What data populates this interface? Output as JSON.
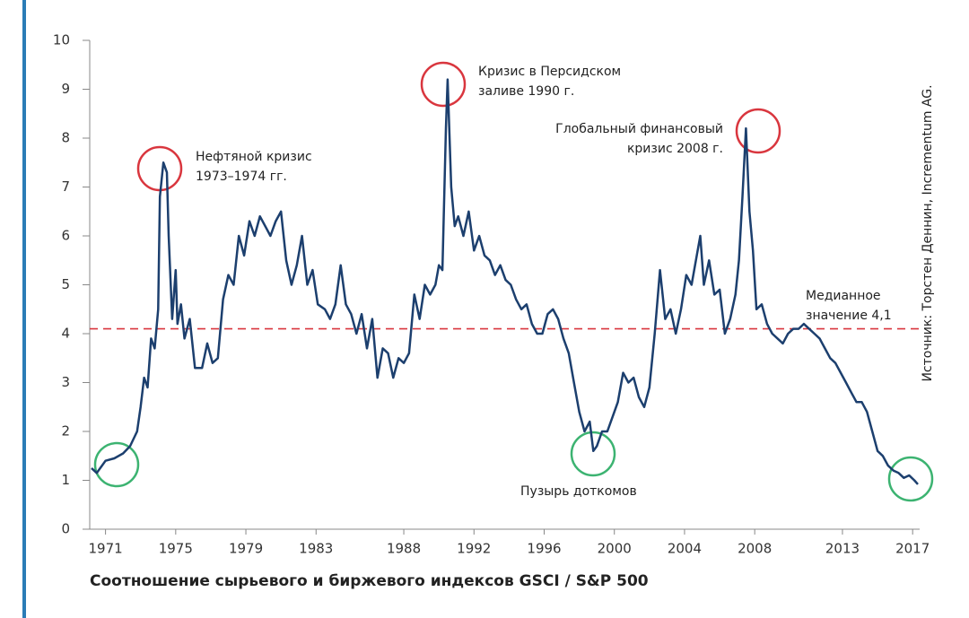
{
  "chart_data": {
    "type": "line",
    "xlabel": "Соотношение сырьевого и биржевого индексов GSCI / S&P 500",
    "source": "Источник: Торстен Деннин, Incrementum AG.",
    "color": "#1c3f6e",
    "median": 4.1,
    "median_color": "#d9363e",
    "median_label": [
      "Медианное",
      "значение 4,1"
    ],
    "annotations": [
      {
        "lines": [
          "Нефтяной кризис",
          "1973–1974 гг."
        ]
      },
      {
        "lines": [
          "Кризис в Персидском",
          "заливе 1990 г."
        ]
      },
      {
        "lines": [
          "Глобальный финансовый",
          "кризис 2008 г."
        ]
      },
      {
        "lines": [
          "Пузырь доткомов"
        ]
      }
    ],
    "xlim": [
      1970.1,
      2017.4
    ],
    "ylim": [
      0,
      10
    ],
    "xticks": [
      1971,
      1975,
      1979,
      1983,
      1988,
      1992,
      1996,
      2000,
      2004,
      2008,
      2013,
      2017
    ],
    "yticks": [
      0,
      1,
      2,
      3,
      4,
      5,
      6,
      7,
      8,
      9,
      10
    ],
    "x": [
      1970.2,
      1970.5,
      1970.8,
      1971.0,
      1971.5,
      1972.0,
      1972.4,
      1972.8,
      1973.0,
      1973.2,
      1973.4,
      1973.6,
      1973.8,
      1974.0,
      1974.1,
      1974.3,
      1974.5,
      1974.6,
      1974.8,
      1975.0,
      1975.1,
      1975.3,
      1975.5,
      1975.8,
      1976.1,
      1976.5,
      1976.8,
      1977.1,
      1977.4,
      1977.7,
      1978.0,
      1978.3,
      1978.6,
      1978.9,
      1979.2,
      1979.5,
      1979.8,
      1980.1,
      1980.4,
      1980.7,
      1981.0,
      1981.3,
      1981.6,
      1981.9,
      1982.2,
      1982.5,
      1982.8,
      1983.1,
      1983.5,
      1983.8,
      1984.1,
      1984.4,
      1984.7,
      1985.0,
      1985.3,
      1985.6,
      1985.9,
      1986.2,
      1986.5,
      1986.8,
      1987.1,
      1987.4,
      1987.7,
      1988.0,
      1988.3,
      1988.6,
      1988.9,
      1989.2,
      1989.5,
      1989.8,
      1990.0,
      1990.2,
      1990.4,
      1990.5,
      1990.7,
      1990.9,
      1991.1,
      1991.4,
      1991.7,
      1992.0,
      1992.3,
      1992.6,
      1992.9,
      1993.2,
      1993.5,
      1993.8,
      1994.1,
      1994.4,
      1994.7,
      1995.0,
      1995.3,
      1995.6,
      1995.9,
      1996.2,
      1996.5,
      1996.8,
      1997.1,
      1997.4,
      1997.7,
      1998.0,
      1998.3,
      1998.6,
      1998.8,
      1999.0,
      1999.3,
      1999.6,
      1999.9,
      2000.2,
      2000.5,
      2000.8,
      2001.1,
      2001.4,
      2001.7,
      2002.0,
      2002.3,
      2002.6,
      2002.9,
      2003.2,
      2003.5,
      2003.8,
      2004.1,
      2004.4,
      2004.7,
      2004.9,
      2005.1,
      2005.4,
      2005.7,
      2006.0,
      2006.3,
      2006.6,
      2006.9,
      2007.1,
      2007.3,
      2007.5,
      2007.7,
      2007.9,
      2008.1,
      2008.4,
      2008.7,
      2009.0,
      2009.3,
      2009.6,
      2009.9,
      2010.2,
      2010.5,
      2010.8,
      2011.1,
      2011.4,
      2011.7,
      2012.0,
      2012.3,
      2012.6,
      2012.9,
      2013.2,
      2013.5,
      2013.8,
      2014.1,
      2014.4,
      2014.7,
      2015.0,
      2015.3,
      2015.6,
      2015.9,
      2016.2,
      2016.5,
      2016.8,
      2017.1,
      2017.3
    ],
    "values": [
      1.25,
      1.15,
      1.3,
      1.4,
      1.45,
      1.55,
      1.7,
      2.0,
      2.5,
      3.1,
      2.9,
      3.9,
      3.7,
      4.5,
      6.8,
      7.5,
      7.3,
      6.0,
      4.3,
      5.3,
      4.2,
      4.6,
      3.9,
      4.3,
      3.3,
      3.3,
      3.8,
      3.4,
      3.5,
      4.7,
      5.2,
      5.0,
      6.0,
      5.6,
      6.3,
      6.0,
      6.4,
      6.2,
      6.0,
      6.3,
      6.5,
      5.5,
      5.0,
      5.4,
      6.0,
      5.0,
      5.3,
      4.6,
      4.5,
      4.3,
      4.6,
      5.4,
      4.6,
      4.4,
      4.0,
      4.4,
      3.7,
      4.3,
      3.1,
      3.7,
      3.6,
      3.1,
      3.5,
      3.4,
      3.6,
      4.8,
      4.3,
      5.0,
      4.8,
      5.0,
      5.4,
      5.3,
      8.2,
      9.2,
      7.0,
      6.2,
      6.4,
      6.0,
      6.5,
      5.7,
      6.0,
      5.6,
      5.5,
      5.2,
      5.4,
      5.1,
      5.0,
      4.7,
      4.5,
      4.6,
      4.2,
      4.0,
      4.0,
      4.4,
      4.5,
      4.3,
      3.9,
      3.6,
      3.0,
      2.4,
      2.0,
      2.2,
      1.6,
      1.7,
      2.0,
      2.0,
      2.3,
      2.6,
      3.2,
      3.0,
      3.1,
      2.7,
      2.5,
      2.9,
      4.0,
      5.3,
      4.3,
      4.5,
      4.0,
      4.5,
      5.2,
      5.0,
      5.6,
      6.0,
      5.0,
      5.5,
      4.8,
      4.9,
      4.0,
      4.3,
      4.8,
      5.5,
      6.8,
      8.2,
      6.5,
      5.7,
      4.5,
      4.6,
      4.2,
      4.0,
      3.9,
      3.8,
      4.0,
      4.1,
      4.1,
      4.2,
      4.1,
      4.0,
      3.9,
      3.7,
      3.5,
      3.4,
      3.2,
      3.0,
      2.8,
      2.6,
      2.6,
      2.4,
      2.0,
      1.6,
      1.5,
      1.3,
      1.2,
      1.15,
      1.05,
      1.1,
      1.0,
      0.92
    ]
  }
}
